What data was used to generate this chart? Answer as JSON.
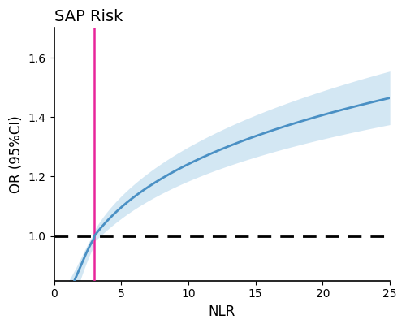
{
  "title": "SAP Risk",
  "xlabel": "NLR",
  "ylabel": "OR (95%CI)",
  "xlim": [
    0,
    25
  ],
  "ylim": [
    0.85,
    1.7
  ],
  "yticks": [
    1.0,
    1.2,
    1.4,
    1.6
  ],
  "xticks": [
    0,
    5,
    10,
    15,
    20,
    25
  ],
  "ref_line_x": 3.0,
  "ref_line_y": 1.0,
  "line_color": "#4a90c4",
  "ci_color": "#c5dff0",
  "vline_color": "#e8259a",
  "hline_color": "black",
  "background_color": "#ffffff",
  "title_fontsize": 14,
  "axis_fontsize": 12,
  "tick_fontsize": 10
}
